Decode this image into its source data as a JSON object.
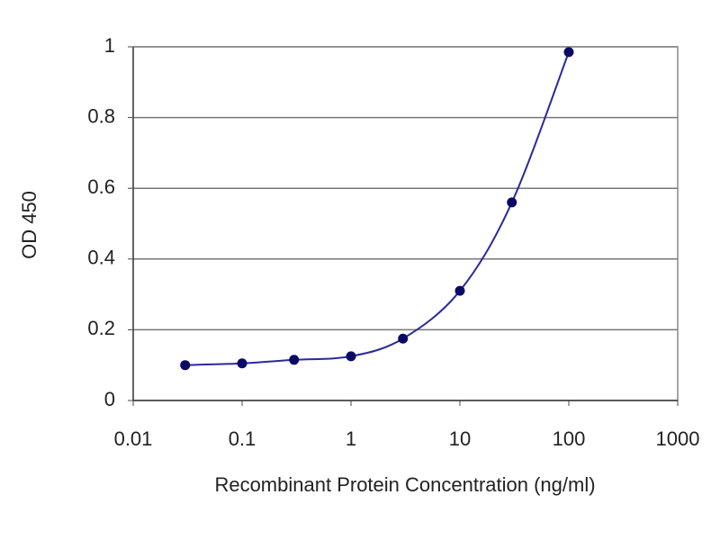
{
  "chart_data": {
    "type": "line",
    "xlabel": "Recombinant Protein Concentration (ng/ml)",
    "ylabel": "OD 450",
    "x": [
      0.03,
      0.1,
      0.3,
      1,
      3,
      10,
      30,
      100
    ],
    "series": [
      {
        "name": "OD 450",
        "color": "#2a2a9a",
        "marker_color": "#0a0a66",
        "values": [
          0.1,
          0.105,
          0.115,
          0.125,
          0.175,
          0.31,
          0.56,
          0.985
        ]
      }
    ],
    "xscale": "log",
    "xlim": [
      0.01,
      1000
    ],
    "xticks": [
      0.01,
      0.1,
      1,
      10,
      100,
      1000
    ],
    "ylim": [
      0,
      1
    ],
    "yticks": [
      0,
      0.2,
      0.4,
      0.6,
      0.8,
      1
    ],
    "grid": true
  }
}
